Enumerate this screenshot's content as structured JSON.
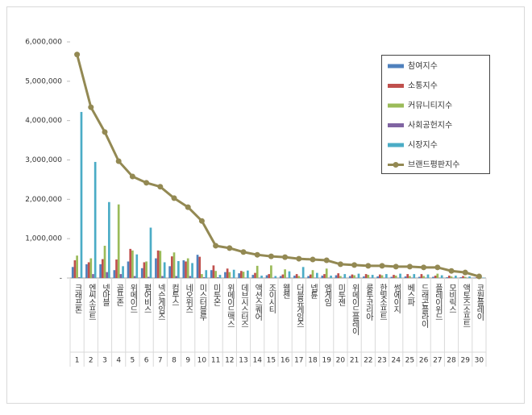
{
  "chart_data": {
    "type": "bar",
    "categories": [
      "크래프톤",
      "엔씨소프트",
      "넷마블",
      "골프존",
      "위메이드",
      "펄어비스",
      "넥슨게임즈",
      "컴투스",
      "네오위즈",
      "미스터블루",
      "미투온",
      "위메이드맥스",
      "데브시스터즈",
      "액션스퀘어",
      "조이시티",
      "웹젠",
      "더블유게임즈",
      "넵튠",
      "엠게임",
      "미투젠",
      "위메이드플레이",
      "룽투코리아",
      "한빛소프트",
      "썸에이지",
      "베스파",
      "드래곤플라이",
      "플레이위드",
      "모비릭스",
      "액토즈소프트",
      "코원플레이"
    ],
    "ranks": [
      1,
      2,
      3,
      4,
      5,
      6,
      7,
      8,
      9,
      10,
      11,
      12,
      13,
      14,
      15,
      16,
      17,
      18,
      19,
      20,
      21,
      22,
      23,
      24,
      25,
      26,
      27,
      28,
      29,
      30
    ],
    "series": [
      {
        "name": "참여지수",
        "type": "bar",
        "color": "#4f81bd",
        "values": [
          280000,
          350000,
          350000,
          200000,
          420000,
          250000,
          500000,
          300000,
          450000,
          590000,
          200000,
          150000,
          120000,
          80000,
          70000,
          50000,
          60000,
          50000,
          60000,
          70000,
          50000,
          40000,
          40000,
          30000,
          40000,
          30000,
          30000,
          20000,
          20000,
          10000
        ]
      },
      {
        "name": "소통지수",
        "type": "bar",
        "color": "#c0504d",
        "values": [
          450000,
          400000,
          480000,
          470000,
          740000,
          400000,
          700000,
          550000,
          420000,
          540000,
          320000,
          240000,
          180000,
          130000,
          100000,
          90000,
          100000,
          90000,
          100000,
          120000,
          90000,
          100000,
          90000,
          80000,
          100000,
          100000,
          60000,
          60000,
          50000,
          20000
        ]
      },
      {
        "name": "커뮤니티지수",
        "type": "bar",
        "color": "#9bbb59",
        "values": [
          570000,
          500000,
          820000,
          1870000,
          700000,
          420000,
          690000,
          650000,
          500000,
          100000,
          180000,
          150000,
          160000,
          310000,
          320000,
          220000,
          50000,
          200000,
          240000,
          50000,
          70000,
          80000,
          70000,
          60000,
          50000,
          50000,
          110000,
          40000,
          30000,
          10000
        ]
      },
      {
        "name": "사회공헌지수",
        "type": "bar",
        "color": "#8064a2",
        "values": [
          20000,
          100000,
          150000,
          100000,
          50000,
          30000,
          50000,
          50000,
          50000,
          20000,
          20000,
          10000,
          10000,
          10000,
          10000,
          10000,
          10000,
          10000,
          10000,
          10000,
          10000,
          10000,
          10000,
          10000,
          10000,
          10000,
          10000,
          5000,
          5000,
          2000
        ]
      },
      {
        "name": "시장지수",
        "type": "bar",
        "color": "#4bacc6",
        "values": [
          4220000,
          2950000,
          1930000,
          300000,
          600000,
          1280000,
          400000,
          430000,
          380000,
          200000,
          80000,
          210000,
          190000,
          60000,
          50000,
          170000,
          280000,
          130000,
          60000,
          100000,
          110000,
          80000,
          100000,
          110000,
          100000,
          90000,
          70000,
          60000,
          40000,
          10000
        ]
      },
      {
        "name": "브랜드평판지수",
        "type": "line",
        "color": "#938953",
        "values": [
          5680000,
          4340000,
          3710000,
          2970000,
          2580000,
          2420000,
          2320000,
          2030000,
          1800000,
          1450000,
          820000,
          760000,
          660000,
          590000,
          550000,
          530000,
          490000,
          470000,
          450000,
          350000,
          330000,
          310000,
          310000,
          290000,
          290000,
          270000,
          270000,
          180000,
          140000,
          40000
        ]
      }
    ],
    "ylim": [
      0,
      6000000
    ],
    "yticks": [
      {
        "value": 0,
        "label": "-"
      },
      {
        "value": 1000000,
        "label": "1,000,000"
      },
      {
        "value": 2000000,
        "label": "2,000,000"
      },
      {
        "value": 3000000,
        "label": "3,000,000"
      },
      {
        "value": 4000000,
        "label": "4,000,000"
      },
      {
        "value": 5000000,
        "label": "5,000,000"
      },
      {
        "value": 6000000,
        "label": "6,000,000"
      }
    ]
  }
}
